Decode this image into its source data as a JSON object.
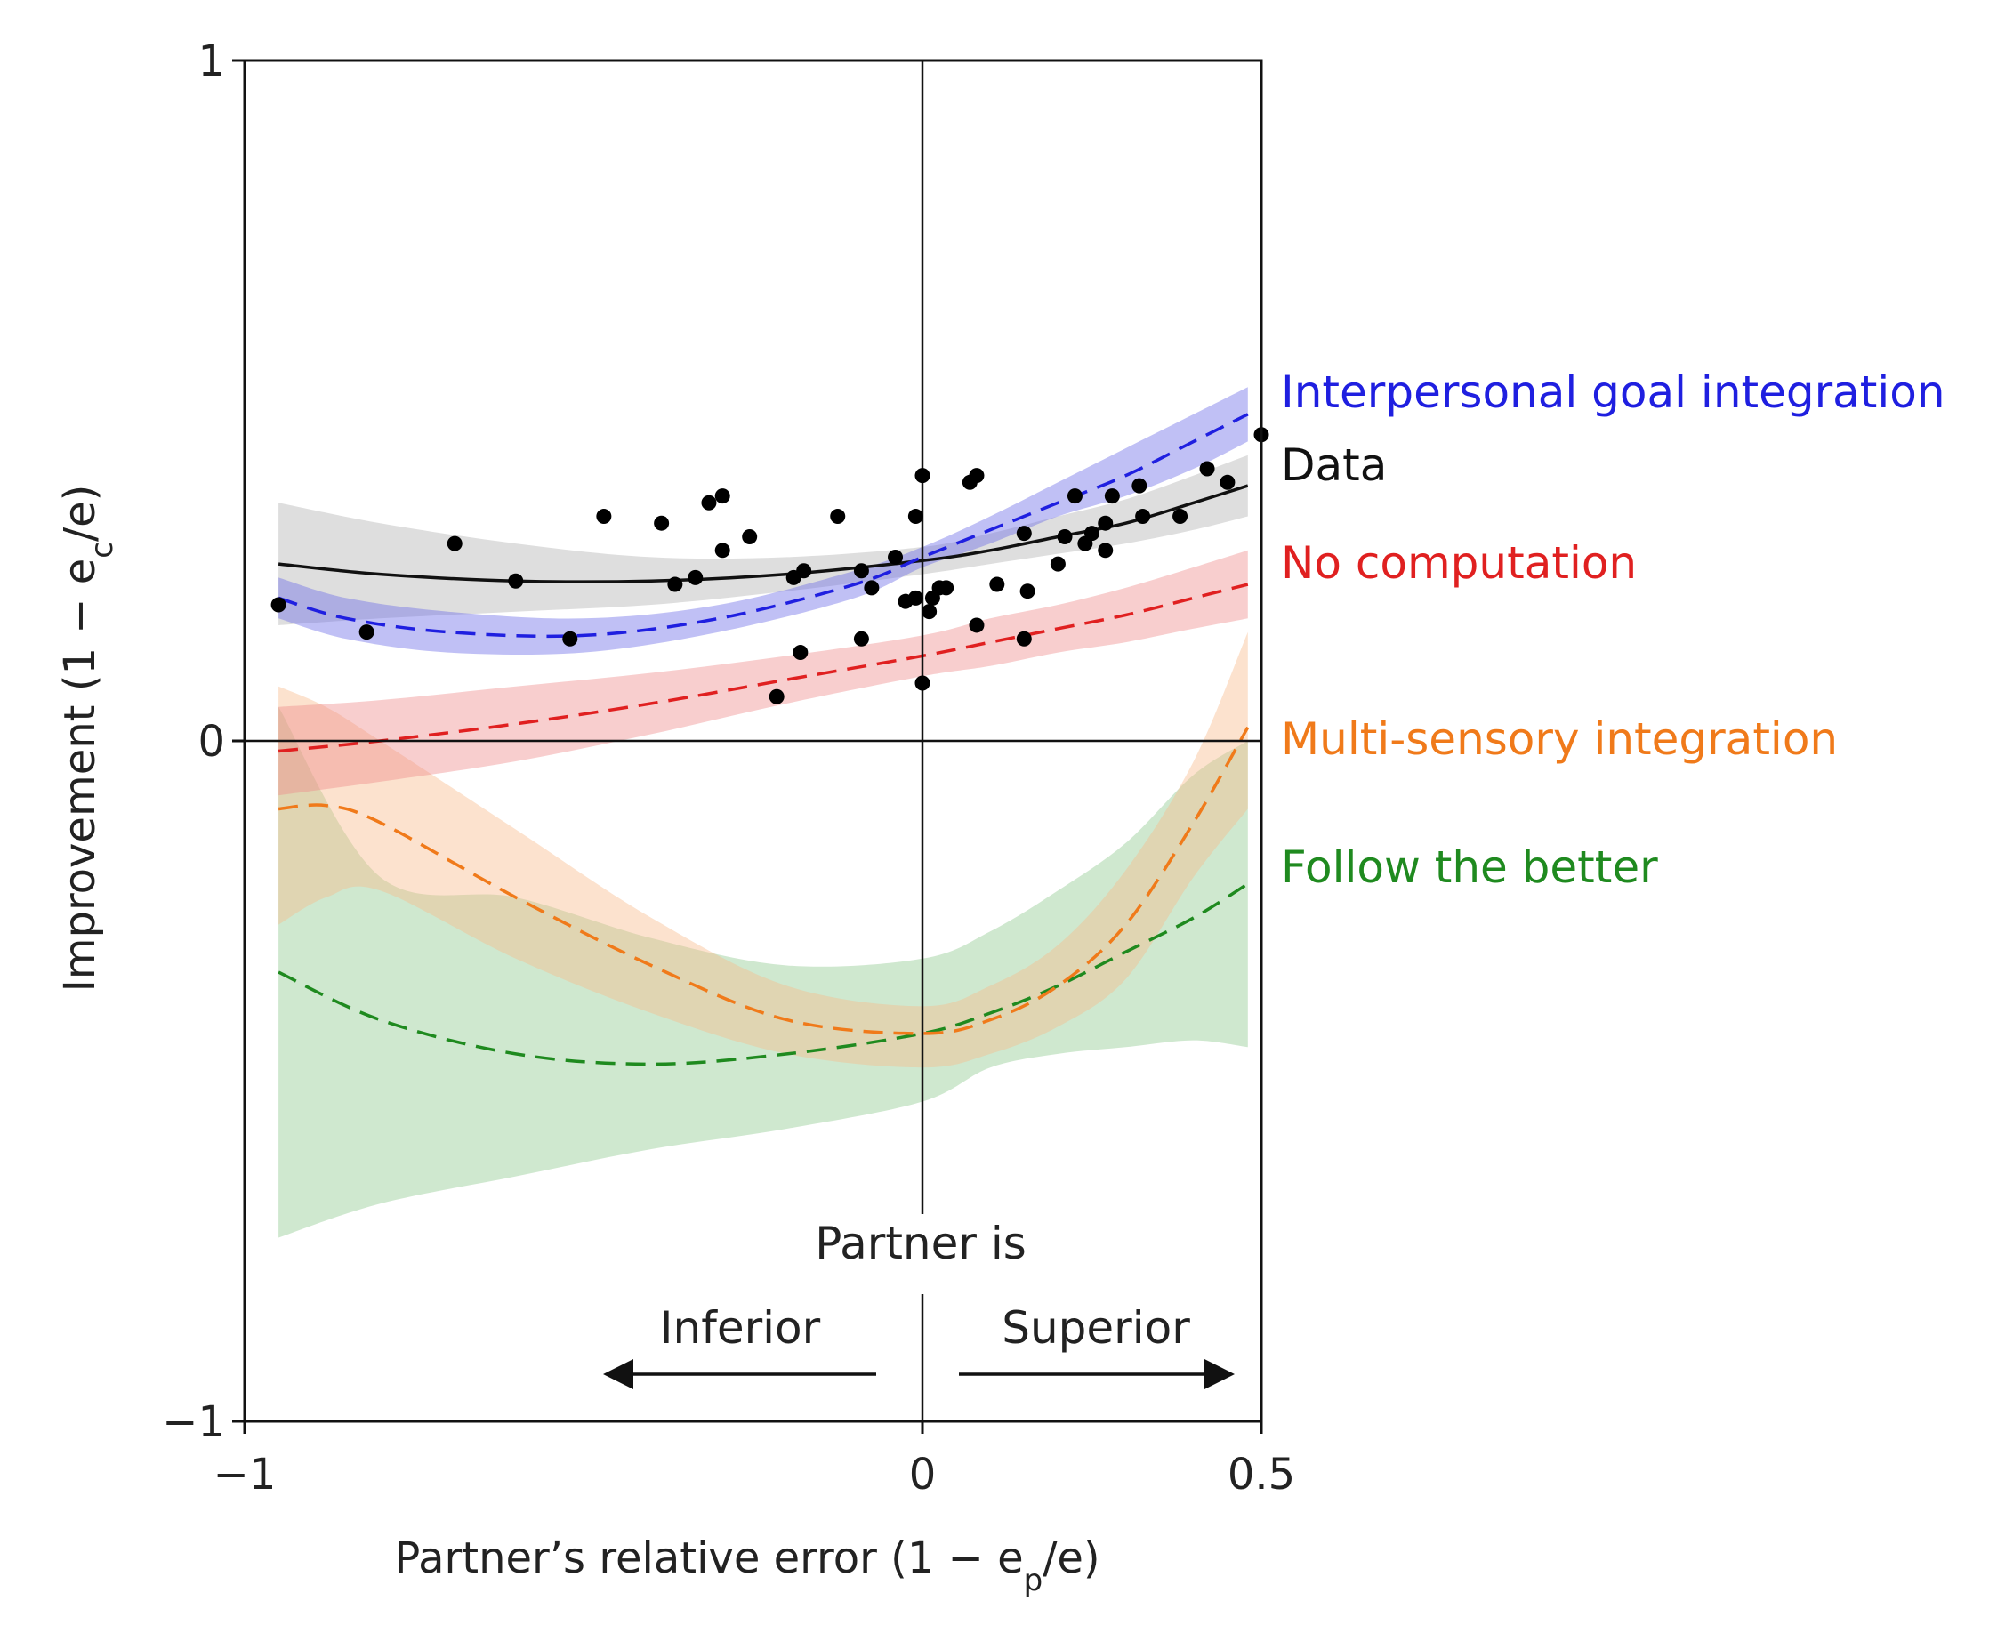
{
  "chart_data": {
    "type": "line",
    "xlabel": "Partner’s relative error (1 − e",
    "xlabel_sub": "p",
    "xlabel_tail": "/e)",
    "ylabel": "Improvement (1 − e",
    "ylabel_sub": "c",
    "ylabel_tail": "/e)",
    "xlim": [
      -1,
      0.5
    ],
    "ylim": [
      -1,
      1
    ],
    "x_ticks": [
      {
        "value": -1,
        "label": "−1"
      },
      {
        "value": 0,
        "label": "0"
      },
      {
        "value": 0.5,
        "label": "0.5"
      }
    ],
    "y_ticks": [
      {
        "value": -1,
        "label": "−1"
      },
      {
        "value": 0,
        "label": "0"
      },
      {
        "value": 1,
        "label": "1"
      }
    ],
    "reference_lines": {
      "x": 0,
      "y": 0
    },
    "legend_placement": "right",
    "series": [
      {
        "name": "Interpersonal goal integration",
        "color": "#1f1fe0",
        "band_color": "#6a6ae8",
        "style": "dashed",
        "x": [
          -0.95,
          -0.85,
          -0.7,
          -0.5,
          -0.3,
          -0.1,
          0.0,
          0.1,
          0.2,
          0.3,
          0.4,
          0.48
        ],
        "y": [
          0.21,
          0.18,
          0.16,
          0.155,
          0.18,
          0.23,
          0.27,
          0.31,
          0.35,
          0.39,
          0.44,
          0.48
        ],
        "band_upper": [
          0.24,
          0.21,
          0.19,
          0.18,
          0.2,
          0.25,
          0.285,
          0.33,
          0.38,
          0.43,
          0.48,
          0.52
        ],
        "band_lower": [
          0.18,
          0.15,
          0.13,
          0.13,
          0.16,
          0.21,
          0.255,
          0.29,
          0.33,
          0.36,
          0.4,
          0.44
        ]
      },
      {
        "name": "Data",
        "color": "#111111",
        "band_color": "#b0b0b0",
        "style": "solid",
        "x": [
          -0.95,
          -0.8,
          -0.6,
          -0.4,
          -0.2,
          0.0,
          0.1,
          0.2,
          0.3,
          0.4,
          0.48
        ],
        "y": [
          0.26,
          0.245,
          0.235,
          0.235,
          0.245,
          0.265,
          0.28,
          0.3,
          0.32,
          0.35,
          0.375
        ],
        "band_upper": [
          0.35,
          0.32,
          0.29,
          0.27,
          0.27,
          0.285,
          0.305,
          0.33,
          0.355,
          0.39,
          0.42
        ],
        "band_lower": [
          0.17,
          0.18,
          0.19,
          0.2,
          0.22,
          0.245,
          0.26,
          0.275,
          0.29,
          0.31,
          0.33
        ]
      },
      {
        "name": "No computation",
        "color": "#e02020",
        "band_color": "#ef8a8a",
        "style": "dashed",
        "x": [
          -0.95,
          -0.8,
          -0.6,
          -0.4,
          -0.2,
          0.0,
          0.1,
          0.2,
          0.3,
          0.4,
          0.48
        ],
        "y": [
          -0.015,
          0.0,
          0.025,
          0.055,
          0.09,
          0.125,
          0.145,
          0.165,
          0.185,
          0.21,
          0.23
        ],
        "band_upper": [
          0.05,
          0.06,
          0.08,
          0.1,
          0.125,
          0.155,
          0.18,
          0.2,
          0.225,
          0.255,
          0.28
        ],
        "band_lower": [
          -0.08,
          -0.06,
          -0.03,
          0.01,
          0.055,
          0.095,
          0.11,
          0.13,
          0.145,
          0.165,
          0.18
        ]
      },
      {
        "name": "Multi-sensory integration",
        "color": "#f07a1a",
        "band_color": "#f7b98a",
        "style": "dashed",
        "x": [
          -0.95,
          -0.88,
          -0.8,
          -0.6,
          -0.4,
          -0.2,
          0.0,
          0.1,
          0.2,
          0.3,
          0.4,
          0.48
        ],
        "y": [
          -0.1,
          -0.095,
          -0.12,
          -0.23,
          -0.33,
          -0.41,
          -0.43,
          -0.41,
          -0.36,
          -0.27,
          -0.12,
          0.02
        ],
        "band_upper": [
          0.08,
          0.05,
          0.0,
          -0.13,
          -0.26,
          -0.36,
          -0.39,
          -0.36,
          -0.3,
          -0.19,
          -0.03,
          0.16
        ],
        "band_lower": [
          -0.27,
          -0.23,
          -0.22,
          -0.32,
          -0.4,
          -0.46,
          -0.48,
          -0.46,
          -0.42,
          -0.35,
          -0.2,
          -0.1
        ]
      },
      {
        "name": "Follow the better",
        "color": "#1f8a1f",
        "band_color": "#8cc98c",
        "style": "dashed",
        "x": [
          -0.95,
          -0.8,
          -0.6,
          -0.4,
          -0.2,
          0.0,
          0.1,
          0.2,
          0.3,
          0.4,
          0.48
        ],
        "y": [
          -0.34,
          -0.41,
          -0.46,
          -0.475,
          -0.46,
          -0.43,
          -0.4,
          -0.36,
          -0.31,
          -0.26,
          -0.21
        ],
        "band_upper": [
          0.05,
          -0.2,
          -0.23,
          -0.29,
          -0.33,
          -0.32,
          -0.28,
          -0.22,
          -0.15,
          -0.05,
          0.0
        ],
        "band_lower": [
          -0.73,
          -0.68,
          -0.64,
          -0.6,
          -0.57,
          -0.53,
          -0.48,
          -0.46,
          -0.45,
          -0.44,
          -0.45
        ]
      }
    ],
    "scatter": {
      "name": "Data",
      "color": "#000000",
      "points": [
        [
          -0.95,
          0.2
        ],
        [
          -0.82,
          0.16
        ],
        [
          -0.69,
          0.29
        ],
        [
          -0.6,
          0.235
        ],
        [
          -0.52,
          0.15
        ],
        [
          -0.47,
          0.33
        ],
        [
          -0.385,
          0.32
        ],
        [
          -0.365,
          0.23
        ],
        [
          -0.335,
          0.24
        ],
        [
          -0.315,
          0.35
        ],
        [
          -0.295,
          0.36
        ],
        [
          -0.295,
          0.28
        ],
        [
          -0.255,
          0.3
        ],
        [
          -0.215,
          0.065
        ],
        [
          -0.19,
          0.24
        ],
        [
          -0.18,
          0.13
        ],
        [
          -0.175,
          0.25
        ],
        [
          -0.125,
          0.33
        ],
        [
          -0.09,
          0.25
        ],
        [
          -0.09,
          0.15
        ],
        [
          -0.075,
          0.225
        ],
        [
          -0.04,
          0.27
        ],
        [
          -0.025,
          0.205
        ],
        [
          -0.01,
          0.33
        ],
        [
          -0.01,
          0.21
        ],
        [
          0.0,
          0.39
        ],
        [
          0.0,
          0.085
        ],
        [
          0.01,
          0.19
        ],
        [
          0.015,
          0.21
        ],
        [
          0.025,
          0.225
        ],
        [
          0.035,
          0.225
        ],
        [
          0.07,
          0.38
        ],
        [
          0.08,
          0.39
        ],
        [
          0.08,
          0.17
        ],
        [
          0.11,
          0.23
        ],
        [
          0.15,
          0.305
        ],
        [
          0.155,
          0.22
        ],
        [
          0.15,
          0.15
        ],
        [
          0.2,
          0.26
        ],
        [
          0.21,
          0.3
        ],
        [
          0.225,
          0.36
        ],
        [
          0.24,
          0.29
        ],
        [
          0.25,
          0.305
        ],
        [
          0.27,
          0.32
        ],
        [
          0.27,
          0.28
        ],
        [
          0.28,
          0.36
        ],
        [
          0.325,
          0.33
        ],
        [
          0.32,
          0.375
        ],
        [
          0.38,
          0.33
        ],
        [
          0.42,
          0.4
        ],
        [
          0.45,
          0.38
        ],
        [
          0.5,
          0.45
        ]
      ]
    },
    "annotations": {
      "partner_is": "Partner is",
      "inferior": "Inferior",
      "superior": "Superior"
    }
  }
}
